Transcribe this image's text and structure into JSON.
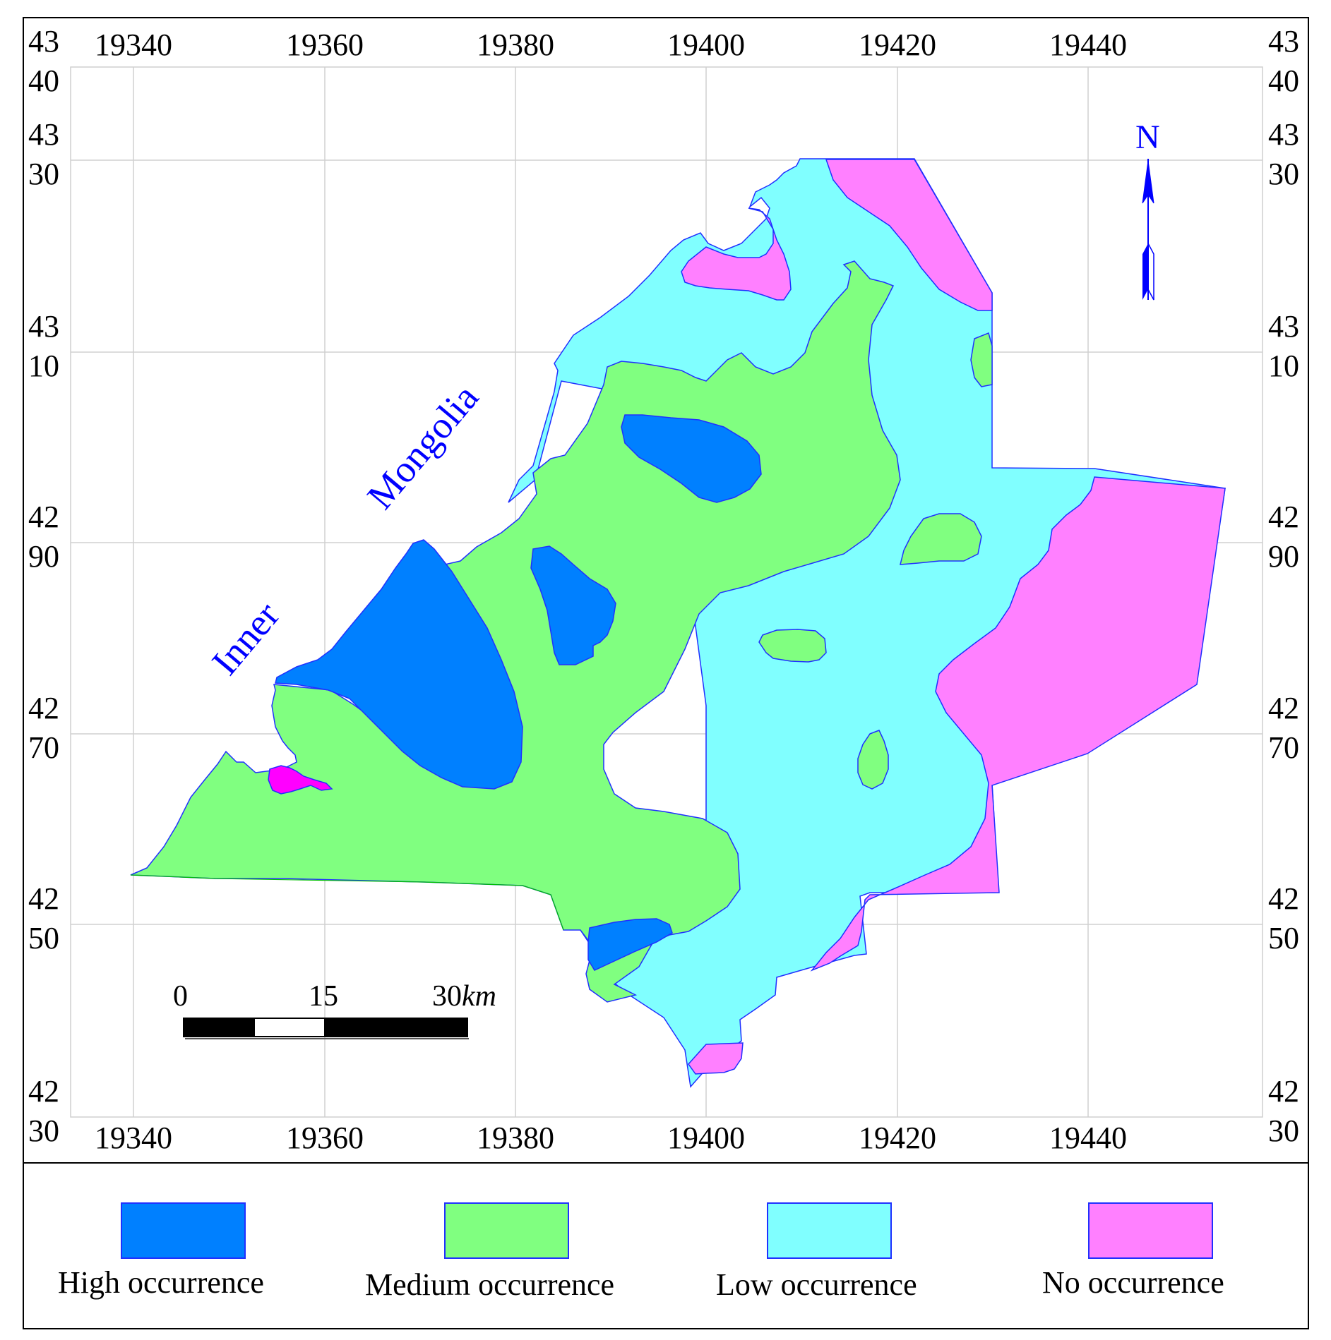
{
  "map": {
    "place_labels": [
      "Inner",
      "Mongolia"
    ],
    "north_label": "N",
    "x_ticks": [
      "19340",
      "19360",
      "19380",
      "19400",
      "19420",
      "19440"
    ],
    "y_ticks": [
      {
        "top": "43",
        "bottom": "40"
      },
      {
        "top": "43",
        "bottom": "30"
      },
      {
        "top": "43",
        "bottom": "10"
      },
      {
        "top": "42",
        "bottom": "90"
      },
      {
        "top": "42",
        "bottom": "70"
      },
      {
        "top": "42",
        "bottom": "50"
      },
      {
        "top": "42",
        "bottom": "30"
      }
    ],
    "scale_bar": {
      "labels": [
        "0",
        "15",
        "30"
      ],
      "unit": "km"
    },
    "colors": {
      "high": "#0080ff",
      "medium": "#80ff80",
      "low": "#80ffff",
      "none": "#ff80ff",
      "none_bright": "#ff00ff",
      "text_blue": "#0000ff"
    }
  },
  "legend": {
    "items": [
      {
        "key": "high",
        "label": "High occurrence",
        "color": "#0080ff"
      },
      {
        "key": "medium",
        "label": "Medium occurrence",
        "color": "#80ff80"
      },
      {
        "key": "low",
        "label": "Low occurrence",
        "color": "#80ffff"
      },
      {
        "key": "none",
        "label": "No occurrence",
        "color": "#ff80ff"
      }
    ]
  }
}
